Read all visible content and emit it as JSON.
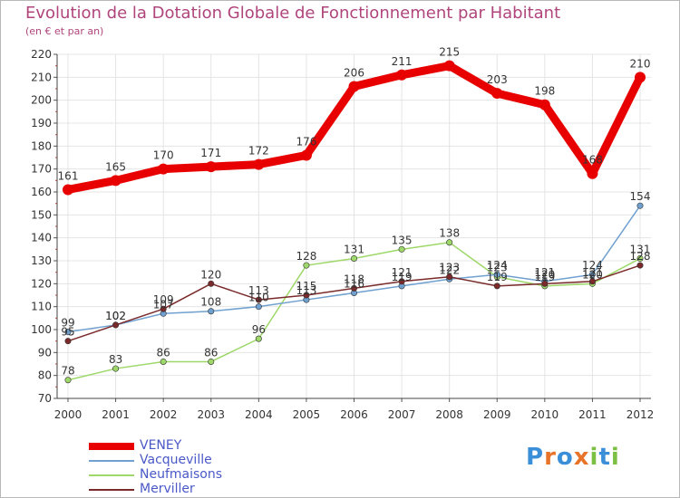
{
  "chart_data": {
    "type": "line",
    "title": "Evolution de la Dotation Globale de Fonctionnement par Habitant",
    "subtitle": "(en € et par an)",
    "xlabel": "",
    "ylabel": "",
    "ylim": [
      70,
      220
    ],
    "yticks": [
      70,
      80,
      90,
      100,
      110,
      120,
      130,
      140,
      150,
      160,
      170,
      180,
      190,
      200,
      210,
      220
    ],
    "categories": [
      "2000",
      "2001",
      "2002",
      "2003",
      "2004",
      "2005",
      "2006",
      "2007",
      "2008",
      "2009",
      "2010",
      "2011",
      "2012"
    ],
    "series": [
      {
        "name": "VENEY",
        "color": "#e80000",
        "values": [
          161,
          165,
          170,
          171,
          172,
          176,
          206,
          211,
          215,
          203,
          198,
          168,
          210
        ]
      },
      {
        "name": "Vacqueville",
        "color": "#6fa0d0",
        "values": [
          99,
          102,
          107,
          108,
          110,
          113,
          116,
          119,
          122,
          124,
          121,
          124,
          154
        ]
      },
      {
        "name": "Neufmaisons",
        "color": "#9ed86a",
        "values": [
          78,
          83,
          86,
          86,
          96,
          128,
          131,
          135,
          138,
          123,
          119,
          120,
          131
        ]
      },
      {
        "name": "Merviller",
        "color": "#7a2a2a",
        "values": [
          95,
          102,
          109,
          120,
          113,
          115,
          118,
          121,
          123,
          119,
          120,
          121,
          128
        ]
      }
    ],
    "data_labels": [
      {
        "series": 0,
        "labels": [
          "161",
          "165",
          "170",
          "171",
          "172",
          "176",
          "206",
          "211",
          "215",
          "203",
          "198",
          "168",
          "210"
        ]
      },
      {
        "series": 1,
        "labels": [
          "99",
          "102",
          "107",
          "108",
          "110",
          "113",
          "116",
          "119",
          "122",
          "124",
          "121",
          "124",
          "154"
        ]
      },
      {
        "series": 2,
        "labels": [
          "78",
          "83",
          "86",
          "86",
          "96",
          "128",
          "131",
          "135",
          "138",
          "123",
          "119",
          "120",
          "131"
        ]
      },
      {
        "series": 3,
        "labels": [
          "95",
          "102",
          "109",
          "120",
          "113",
          "115",
          "118",
          "121",
          "123",
          "119",
          "120",
          "121",
          "128"
        ]
      }
    ]
  },
  "legend": [
    "VENEY",
    "Vacqueville",
    "Neufmaisons",
    "Merviller"
  ],
  "logo": {
    "letters": [
      "P",
      "r",
      "o",
      "x",
      "i",
      "t",
      "i"
    ],
    "colors": [
      "#3a8fd8",
      "#e8742a",
      "#3a8fd8",
      "#e8742a",
      "#7cc043",
      "#3a8fd8",
      "#7cc043"
    ]
  }
}
